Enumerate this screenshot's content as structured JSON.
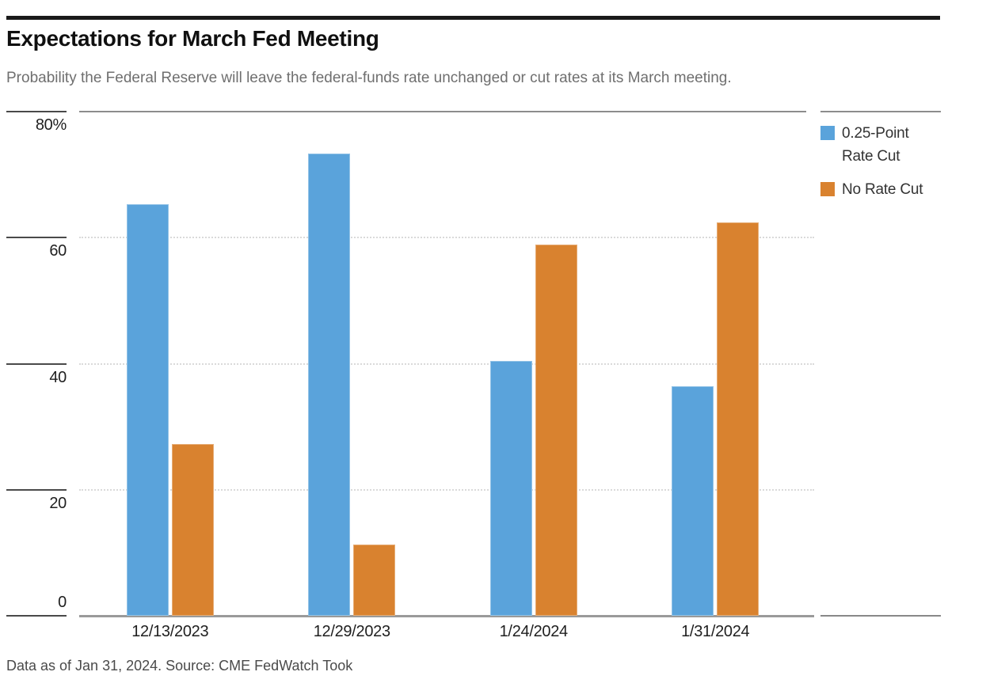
{
  "header": {
    "title": "Expectations for March Fed Meeting",
    "subtitle": "Probability the Federal Reserve will leave the federal-funds rate unchanged or cut rates at its March meeting."
  },
  "footer": {
    "source_note": "Data as of Jan 31, 2024. Source: CME FedWatch Took"
  },
  "colors": {
    "rate_cut_blue": "#5AA3DB",
    "no_cut_orange": "#D9822F",
    "axis_gray": "#9a9a9a",
    "grid_dotted_gray": "#dadada",
    "top_rule_black": "#1a1a1a"
  },
  "chart_data": {
    "type": "bar",
    "title": "Expectations for March Fed Meeting",
    "subtitle": "Probability the Federal Reserve will leave the federal-funds rate unchanged or cut rates at its March meeting.",
    "categories": [
      "12/13/2023",
      "12/29/2023",
      "1/24/2024",
      "1/31/2024"
    ],
    "series": [
      {
        "name": "0.25-Point Rate Cut",
        "color": "#5AA3DB",
        "values": [
          65.3,
          73.4,
          40.4,
          36.4
        ]
      },
      {
        "name": "No Rate Cut",
        "color": "#D9822F",
        "values": [
          27.2,
          11.3,
          58.9,
          62.4
        ]
      }
    ],
    "xlabel": "",
    "ylabel": "",
    "ylim": [
      0,
      80
    ],
    "y_ticks": [
      "80%",
      "60",
      "40",
      "20",
      "0"
    ],
    "y_tick_values": [
      80,
      60,
      40,
      20,
      0
    ],
    "grid": "horizontal dotted at 20/40/60",
    "legend_position": "right",
    "source_note": "Data as of Jan 31, 2024. Source: CME FedWatch Took"
  }
}
